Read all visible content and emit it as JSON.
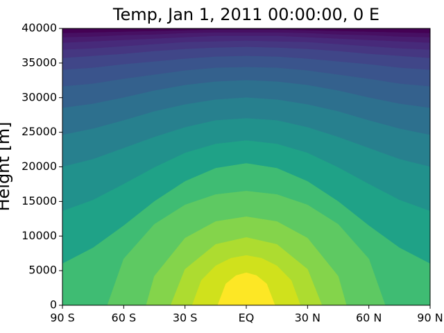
{
  "chart_data": {
    "type": "contourf",
    "title": "Temp, Jan 1, 2011 00:00:00, 0 E",
    "ylabel": "Height [m]",
    "xlim": [
      -90,
      90
    ],
    "ylim": [
      0,
      40000
    ],
    "xticks": [
      {
        "value": -90,
        "label": "90 S"
      },
      {
        "value": -60,
        "label": "60 S"
      },
      {
        "value": -30,
        "label": "30 S"
      },
      {
        "value": 0,
        "label": "EQ"
      },
      {
        "value": 30,
        "label": "30 N"
      },
      {
        "value": 60,
        "label": "60 N"
      },
      {
        "value": 90,
        "label": "90 N"
      }
    ],
    "yticks": [
      0,
      5000,
      10000,
      15000,
      20000,
      25000,
      30000,
      35000,
      40000
    ],
    "background_color": "#440154",
    "contours": [
      {
        "color": "#471063",
        "x": [
          -90,
          -90,
          -75,
          -60,
          -45,
          -30,
          -15,
          0,
          15,
          30,
          45,
          60,
          75,
          90,
          90
        ],
        "y": [
          0,
          39300,
          39400,
          39500,
          39600,
          39700,
          39800,
          39800,
          39800,
          39700,
          39600,
          39500,
          39400,
          39300,
          0
        ]
      },
      {
        "color": "#481d6f",
        "x": [
          -90,
          -90,
          -75,
          -60,
          -45,
          -30,
          -15,
          0,
          15,
          30,
          45,
          60,
          75,
          90,
          90
        ],
        "y": [
          0,
          38700,
          38800,
          39000,
          39100,
          39300,
          39400,
          39400,
          39400,
          39300,
          39100,
          39000,
          38800,
          38700,
          0
        ]
      },
      {
        "color": "#472a7a",
        "x": [
          -90,
          -90,
          -75,
          -60,
          -45,
          -30,
          -15,
          0,
          15,
          30,
          45,
          60,
          75,
          90,
          90
        ],
        "y": [
          0,
          37900,
          38100,
          38300,
          38500,
          38700,
          38900,
          38900,
          38900,
          38700,
          38500,
          38300,
          38100,
          37900,
          0
        ]
      },
      {
        "color": "#453781",
        "x": [
          -90,
          -90,
          -75,
          -60,
          -45,
          -30,
          -15,
          0,
          15,
          30,
          45,
          60,
          75,
          90,
          90
        ],
        "y": [
          0,
          36900,
          37100,
          37400,
          37700,
          38000,
          38100,
          38200,
          38100,
          38000,
          37700,
          37400,
          37100,
          36900,
          0
        ]
      },
      {
        "color": "#404688",
        "x": [
          -90,
          -90,
          -75,
          -60,
          -45,
          -30,
          -15,
          0,
          15,
          30,
          45,
          60,
          75,
          90,
          90
        ],
        "y": [
          0,
          35700,
          36000,
          36300,
          36700,
          37000,
          37200,
          37300,
          37200,
          37000,
          36700,
          36300,
          36000,
          35700,
          0
        ]
      },
      {
        "color": "#3a548c",
        "x": [
          -90,
          -90,
          -75,
          -60,
          -45,
          -30,
          -15,
          0,
          15,
          30,
          45,
          60,
          75,
          90,
          90
        ],
        "y": [
          0,
          34000,
          34300,
          34800,
          35200,
          35600,
          35900,
          36000,
          35900,
          35600,
          35200,
          34800,
          34300,
          34000,
          0
        ]
      },
      {
        "color": "#34618d",
        "x": [
          -90,
          -90,
          -75,
          -60,
          -45,
          -30,
          -15,
          0,
          15,
          30,
          45,
          60,
          75,
          90,
          90
        ],
        "y": [
          0,
          31600,
          32000,
          32700,
          33300,
          33900,
          34300,
          34400,
          34300,
          33900,
          33300,
          32700,
          32000,
          31600,
          0
        ]
      },
      {
        "color": "#2d708e",
        "x": [
          -90,
          -90,
          -75,
          -60,
          -45,
          -30,
          -15,
          0,
          15,
          30,
          45,
          60,
          75,
          90,
          90
        ],
        "y": [
          0,
          28500,
          29100,
          30000,
          31000,
          31800,
          32300,
          32500,
          32300,
          31800,
          31000,
          30000,
          29100,
          28500,
          0
        ]
      },
      {
        "color": "#27808e",
        "x": [
          -90,
          -90,
          -75,
          -60,
          -45,
          -30,
          -15,
          0,
          15,
          30,
          45,
          60,
          75,
          90,
          90
        ],
        "y": [
          0,
          24600,
          25500,
          26700,
          28000,
          29000,
          29700,
          30000,
          29700,
          29000,
          28000,
          26700,
          25500,
          24600,
          0
        ]
      },
      {
        "color": "#21918c",
        "x": [
          -90,
          -90,
          -75,
          -60,
          -45,
          -30,
          -15,
          0,
          15,
          30,
          45,
          60,
          75,
          90,
          90
        ],
        "y": [
          0,
          20000,
          21100,
          22700,
          24300,
          25700,
          26700,
          27000,
          26700,
          25700,
          24300,
          22700,
          21100,
          20000,
          0
        ]
      },
      {
        "color": "#1fa287",
        "x": [
          -90,
          -90,
          -75,
          -60,
          -45,
          -30,
          -15,
          0,
          15,
          30,
          45,
          60,
          75,
          90,
          90
        ],
        "y": [
          0,
          13600,
          15200,
          17500,
          19900,
          22000,
          23300,
          23800,
          23300,
          22000,
          19900,
          17500,
          15200,
          13600,
          0
        ]
      },
      {
        "color": "#3fbc73",
        "x": [
          -90,
          -90,
          -75,
          -60,
          -45,
          -30,
          -15,
          0,
          15,
          30,
          45,
          60,
          75,
          90,
          90
        ],
        "y": [
          0,
          6000,
          8300,
          11500,
          15000,
          17900,
          19800,
          20500,
          19800,
          17900,
          15000,
          11500,
          8300,
          6000,
          0
        ]
      },
      {
        "color": "#5ec962",
        "x": [
          -68,
          -60,
          -45,
          -30,
          -15,
          0,
          15,
          30,
          45,
          60,
          68
        ],
        "y": [
          0,
          6700,
          11700,
          14500,
          16000,
          16500,
          16000,
          14500,
          11700,
          6700,
          0
        ]
      },
      {
        "color": "#84d44b",
        "x": [
          -49,
          -45,
          -30,
          -15,
          0,
          15,
          30,
          45,
          49
        ],
        "y": [
          0,
          4200,
          9700,
          12100,
          12800,
          12100,
          9700,
          4200,
          0
        ]
      },
      {
        "color": "#addc30",
        "x": [
          -37,
          -30,
          -15,
          0,
          15,
          30,
          37
        ],
        "y": [
          0,
          5200,
          8800,
          9800,
          8800,
          5200,
          0
        ]
      },
      {
        "color": "#d0e11c",
        "x": [
          -26.5,
          -22,
          -15,
          -7.5,
          0,
          7.5,
          15,
          22,
          26.5
        ],
        "y": [
          0,
          3600,
          5700,
          6800,
          7200,
          6800,
          5700,
          3600,
          0
        ]
      },
      {
        "color": "#fde725",
        "x": [
          -14,
          -10,
          -5,
          0,
          5,
          10,
          14
        ],
        "y": [
          0,
          3100,
          4300,
          4700,
          4300,
          3100,
          0
        ]
      }
    ]
  }
}
